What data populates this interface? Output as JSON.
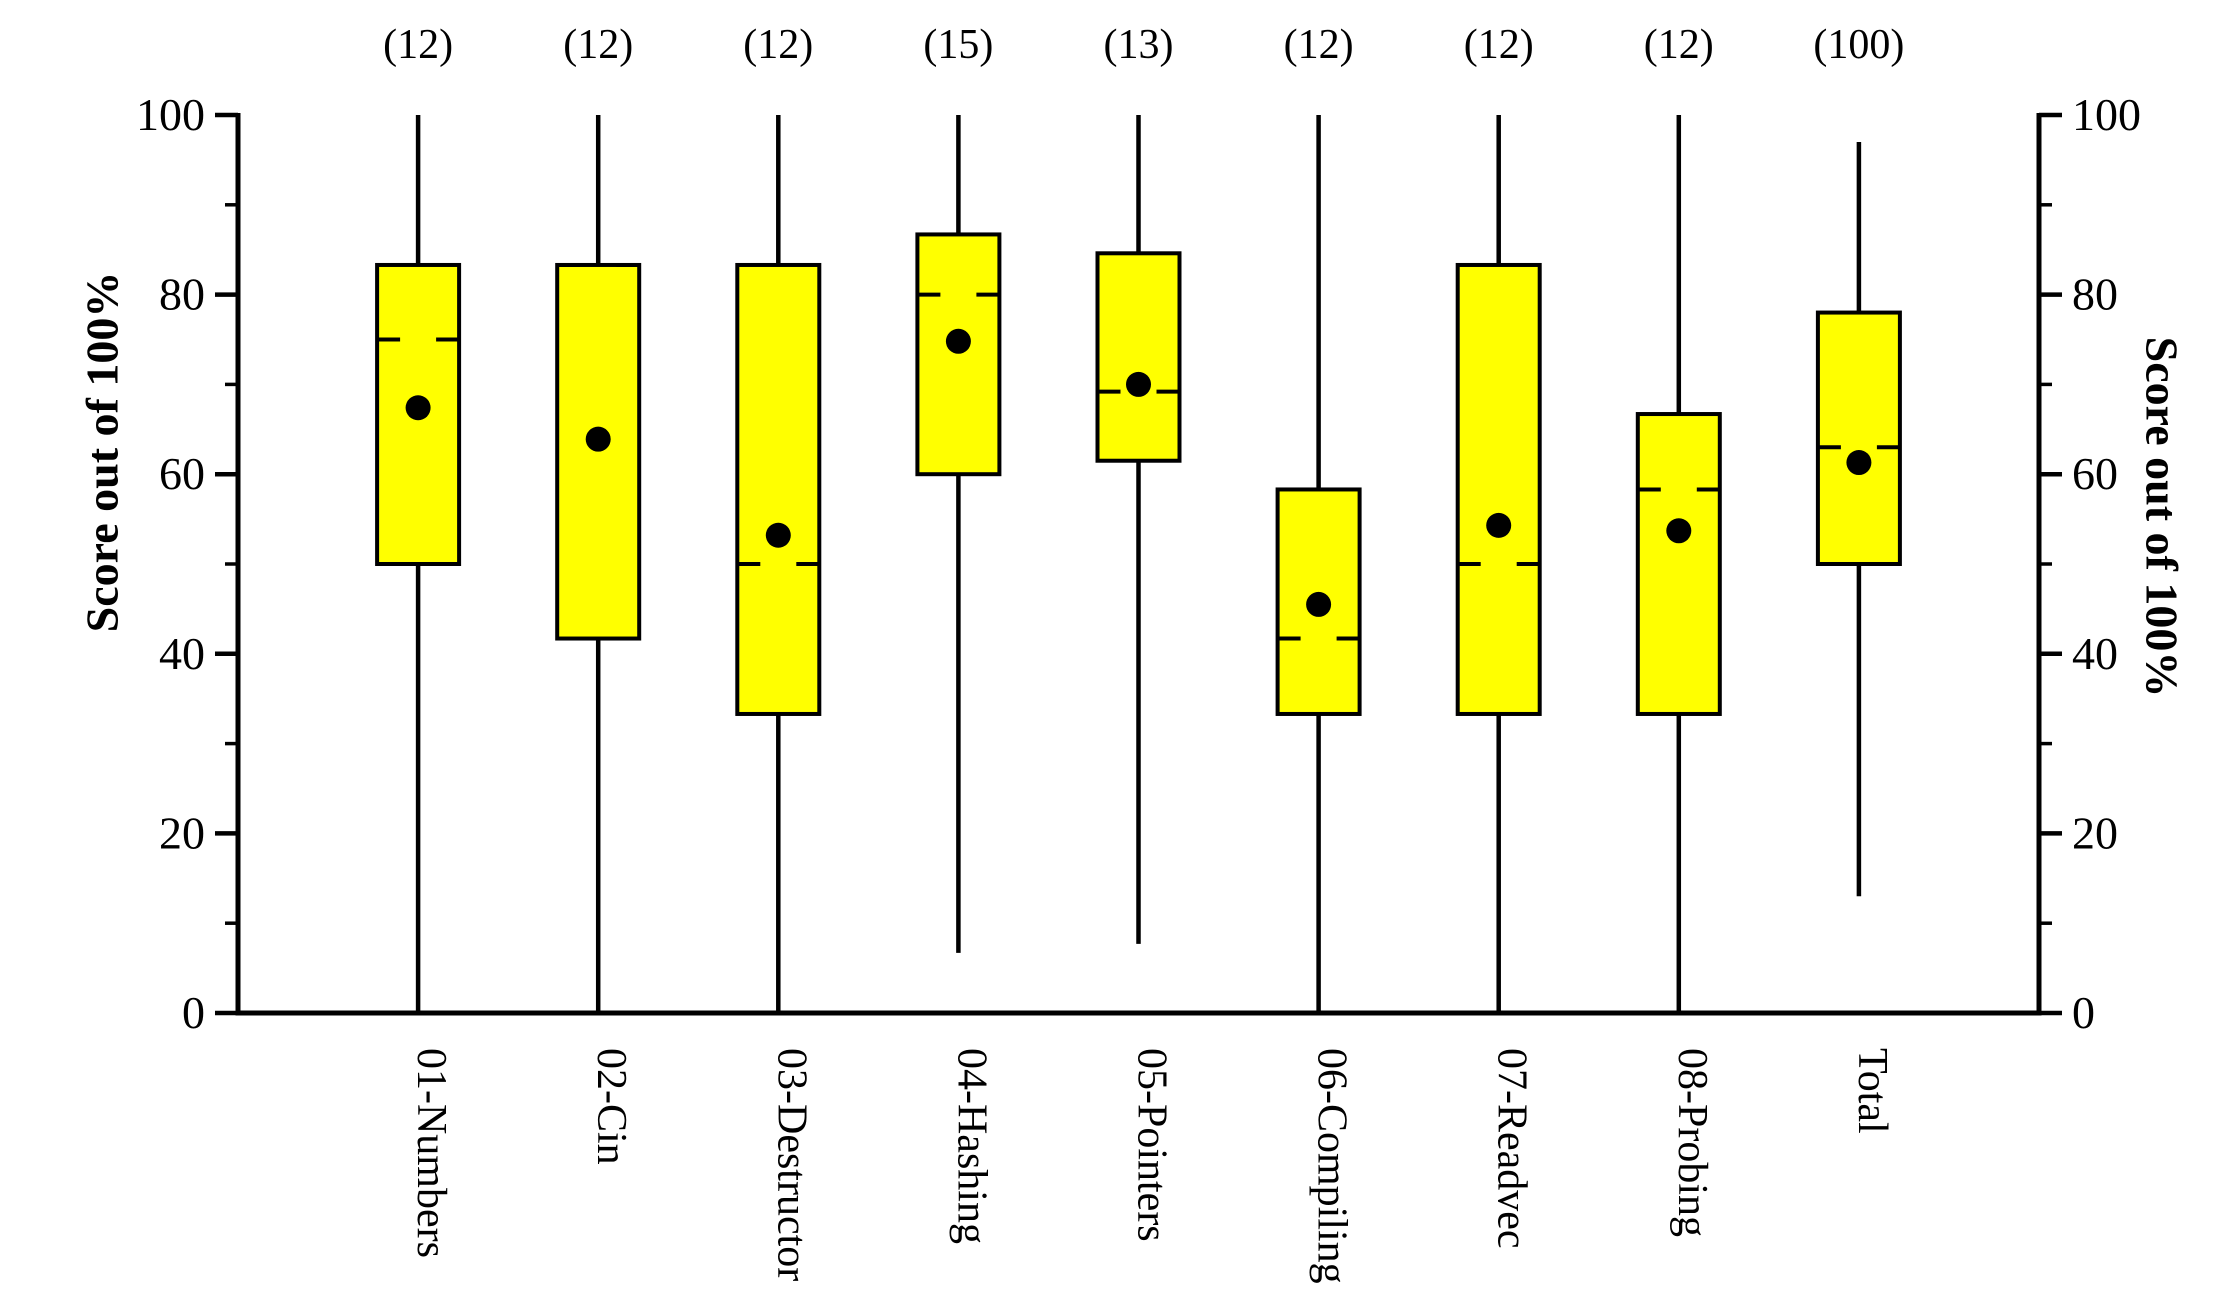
{
  "figure": {
    "background": "#ffffff",
    "box_fill": "#ffff00",
    "line_color": "#000000"
  },
  "axes": {
    "y_left": {
      "title": "Score out of 100%",
      "major_ticks": [
        0,
        20,
        40,
        60,
        80,
        100
      ],
      "minor_ticks": [
        10,
        30,
        50,
        70,
        90
      ],
      "range": [
        0,
        100
      ]
    },
    "y_right": {
      "title": "Score out of 100%",
      "major_ticks": [
        0,
        20,
        40,
        60,
        80,
        100
      ],
      "minor_ticks": [
        10,
        30,
        50,
        70,
        90
      ],
      "range": [
        0,
        100
      ]
    }
  },
  "chart_data": {
    "type": "boxplot",
    "title": "",
    "ylabel": "Score out of 100%",
    "ylim": [
      0,
      100
    ],
    "grid": false,
    "legend": false,
    "categories": [
      "01-Numbers",
      "02-Cin",
      "03-Destructor",
      "04-Hashing",
      "05-Pointers",
      "06-Compiling",
      "07-Readvec",
      "08-Probing",
      "Total"
    ],
    "sample_size_labels": [
      "(12)",
      "(12)",
      "(12)",
      "(15)",
      "(13)",
      "(12)",
      "(12)",
      "(12)",
      "(100)"
    ],
    "boxes": [
      {
        "label": "01-Numbers",
        "count_label": "(12)",
        "whisker_low": 0,
        "q1": 50,
        "median": 75,
        "q3": 83.3,
        "whisker_high": 100,
        "mean": 67.4
      },
      {
        "label": "02-Cin",
        "count_label": "(12)",
        "whisker_low": 0,
        "q1": 41.7,
        "median": 83.3,
        "q3": 83.3,
        "whisker_high": 100,
        "mean": 63.9
      },
      {
        "label": "03-Destructor",
        "count_label": "(12)",
        "whisker_low": 0,
        "q1": 33.3,
        "median": 50,
        "q3": 83.3,
        "whisker_high": 100,
        "mean": 53.2
      },
      {
        "label": "04-Hashing",
        "count_label": "(15)",
        "whisker_low": 6.7,
        "q1": 60,
        "median": 80,
        "q3": 86.7,
        "whisker_high": 100,
        "mean": 74.8
      },
      {
        "label": "05-Pointers",
        "count_label": "(13)",
        "whisker_low": 7.7,
        "q1": 61.5,
        "median": 69.2,
        "q3": 84.6,
        "whisker_high": 100,
        "mean": 70.0
      },
      {
        "label": "06-Compiling",
        "count_label": "(12)",
        "whisker_low": 0,
        "q1": 33.3,
        "median": 41.7,
        "q3": 58.3,
        "whisker_high": 100,
        "mean": 45.5
      },
      {
        "label": "07-Readvec",
        "count_label": "(12)",
        "whisker_low": 0,
        "q1": 33.3,
        "median": 50,
        "q3": 83.3,
        "whisker_high": 100,
        "mean": 54.3
      },
      {
        "label": "08-Probing",
        "count_label": "(12)",
        "whisker_low": 0,
        "q1": 33.3,
        "median": 58.3,
        "q3": 66.7,
        "whisker_high": 100,
        "mean": 53.7
      },
      {
        "label": "Total",
        "count_label": "(100)",
        "whisker_low": 13,
        "q1": 50,
        "median": 63,
        "q3": 78,
        "whisker_high": 97,
        "mean": 61.3
      }
    ]
  }
}
